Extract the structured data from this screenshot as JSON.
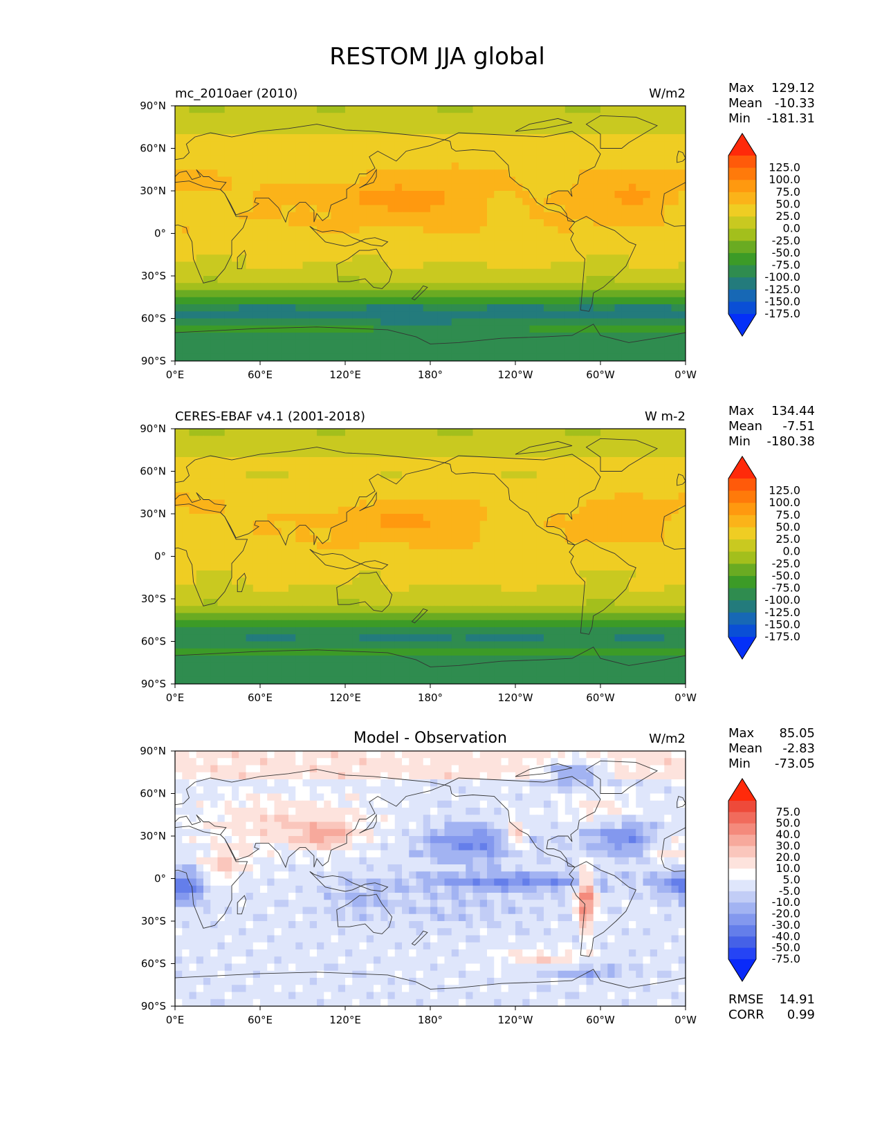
{
  "chart_data": {
    "type": "heatmap",
    "title": "RESTOM JJA global",
    "x_ticks": [
      "0°E",
      "60°E",
      "120°E",
      "180°",
      "120°W",
      "60°W",
      "0°W"
    ],
    "y_ticks": [
      "90°N",
      "60°N",
      "30°N",
      "0°",
      "30°S",
      "60°S",
      "90°S"
    ],
    "panels": [
      {
        "name": "model",
        "left_title": "mc_2010aer (2010)",
        "center_title": "",
        "units": "W/m2",
        "stats": [
          {
            "label": "Max",
            "value": "129.12"
          },
          {
            "label": "Mean",
            "value": "-10.33"
          },
          {
            "label": "Min",
            "value": "-181.31"
          }
        ],
        "colorbar_labels": [
          "125.0",
          "100.0",
          "75.0",
          "50.0",
          "25.0",
          "0.0",
          "-25.0",
          "-50.0",
          "-75.0",
          "-100.0",
          "-125.0",
          "-150.0",
          "-175.0"
        ],
        "colorbar_colors": [
          "#ff2a0a",
          "#ff5a0a",
          "#ff7a0a",
          "#ff990f",
          "#fbb319",
          "#efcd23",
          "#c9c920",
          "#a3bf1c",
          "#6aab22",
          "#3c9b27",
          "#2f8c4f",
          "#237b7c",
          "#1768b5",
          "#0a4fd6",
          "#0430f8"
        ],
        "field": "restom",
        "amp": 1.0
      },
      {
        "name": "obs",
        "left_title": "CERES-EBAF v4.1 (2001-2018)",
        "center_title": "",
        "units": "W m-2",
        "stats": [
          {
            "label": "Max",
            "value": "134.44"
          },
          {
            "label": "Mean",
            "value": "-7.51"
          },
          {
            "label": "Min",
            "value": "-180.38"
          }
        ],
        "colorbar_labels": [
          "125.0",
          "100.0",
          "75.0",
          "50.0",
          "25.0",
          "0.0",
          "-25.0",
          "-50.0",
          "-75.0",
          "-100.0",
          "-125.0",
          "-150.0",
          "-175.0"
        ],
        "colorbar_colors": [
          "#ff2a0a",
          "#ff5a0a",
          "#ff7a0a",
          "#ff990f",
          "#fbb319",
          "#efcd23",
          "#c9c920",
          "#a3bf1c",
          "#6aab22",
          "#3c9b27",
          "#2f8c4f",
          "#237b7c",
          "#1768b5",
          "#0a4fd6",
          "#0430f8"
        ],
        "field": "restom",
        "amp": 0.92
      },
      {
        "name": "diff",
        "left_title": "",
        "center_title": "Model - Observation",
        "units": "W/m2",
        "stats": [
          {
            "label": "Max",
            "value": "85.05"
          },
          {
            "label": "Mean",
            "value": "-2.83"
          },
          {
            "label": "Min",
            "value": "-73.05"
          }
        ],
        "colorbar_labels": [
          "75.0",
          "50.0",
          "40.0",
          "30.0",
          "20.0",
          "10.0",
          "5.0",
          "-5.0",
          "-10.0",
          "-20.0",
          "-30.0",
          "-40.0",
          "-50.0",
          "-75.0"
        ],
        "colorbar_colors": [
          "#ff2a0a",
          "#ee4a3a",
          "#f16b5c",
          "#f48a7c",
          "#f7a99c",
          "#fac6bc",
          "#fde3dd",
          "#ffffff",
          "#dfe6fb",
          "#c2cdf6",
          "#a2b3f2",
          "#8398ee",
          "#647eea",
          "#4561e7",
          "#2544f5",
          "#0a2af9"
        ],
        "field": "diff",
        "amp": 1.0,
        "extra": [
          {
            "label": "RMSE",
            "value": "14.91"
          },
          {
            "label": "CORR",
            "value": "0.99"
          }
        ]
      }
    ]
  }
}
